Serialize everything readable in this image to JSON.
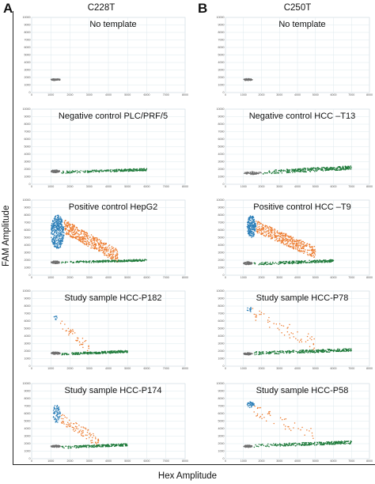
{
  "figure": {
    "label_a": "A",
    "label_b": "B",
    "column_a_title": "C228T",
    "column_b_title": "C250T",
    "y_axis_label": "FAM Amplitude",
    "x_axis_label": "Hex Amplitude"
  },
  "colors": {
    "negative_droplets": "#6e6e6e",
    "hex_positive": "#1e7a3a",
    "fam_positive": "#2c7fb8",
    "double_positive": "#ed7d31",
    "grid": "#dde8ee"
  },
  "chart_data": [
    {
      "type": "scatter",
      "panel": "A1",
      "title": "No template",
      "xlim": [
        0,
        8000
      ],
      "ylim": [
        0,
        10000
      ],
      "x_ticks": [
        0,
        1000,
        2000,
        3000,
        4000,
        5000,
        6000,
        7000,
        8000
      ],
      "y_ticks": [
        0,
        1000,
        2000,
        3000,
        4000,
        5000,
        6000,
        7000,
        8000,
        9000,
        10000
      ],
      "series": [
        {
          "role": "negative",
          "x": [
            1000,
            1500
          ],
          "y": [
            1600,
            1850
          ],
          "density": 70
        }
      ]
    },
    {
      "type": "scatter",
      "panel": "B1",
      "title": "No template",
      "xlim": [
        0,
        8000
      ],
      "ylim": [
        0,
        10000
      ],
      "x_ticks": [
        0,
        1000,
        2000,
        3000,
        4000,
        5000,
        6000,
        7000,
        8000
      ],
      "y_ticks": [
        0,
        1000,
        2000,
        3000,
        4000,
        5000,
        6000,
        7000,
        8000,
        9000,
        10000
      ],
      "series": [
        {
          "role": "negative",
          "x": [
            1000,
            1500
          ],
          "y": [
            1600,
            1850
          ],
          "density": 70
        }
      ]
    },
    {
      "type": "scatter",
      "panel": "A2",
      "title": "Negative control  PLC/PRF/5",
      "xlim": [
        0,
        8000
      ],
      "ylim": [
        0,
        10000
      ],
      "x_ticks": [
        0,
        1000,
        2000,
        3000,
        4000,
        5000,
        6000,
        7000,
        8000
      ],
      "y_ticks": [
        0,
        1000,
        2000,
        3000,
        4000,
        5000,
        6000,
        7000,
        8000,
        9000,
        10000
      ],
      "series": [
        {
          "role": "negative",
          "x": [
            1000,
            1500
          ],
          "y": [
            1550,
            1900
          ],
          "density": 70
        },
        {
          "role": "hex_positive",
          "x": [
            1500,
            6000
          ],
          "y": [
            1600,
            2200
          ],
          "density": 260
        }
      ]
    },
    {
      "type": "scatter",
      "panel": "B2",
      "title": "Negative control  HCC –T13",
      "xlim": [
        0,
        8000
      ],
      "ylim": [
        0,
        10000
      ],
      "x_ticks": [
        0,
        1000,
        2000,
        3000,
        4000,
        5000,
        6000,
        7000,
        8000
      ],
      "y_ticks": [
        0,
        1000,
        2000,
        3000,
        4000,
        5000,
        6000,
        7000,
        8000,
        9000,
        10000
      ],
      "series": [
        {
          "role": "negative",
          "x": [
            1000,
            2000
          ],
          "y": [
            1300,
            1700
          ],
          "density": 70
        },
        {
          "role": "hex_positive",
          "x": [
            2000,
            7000
          ],
          "y": [
            1600,
            2600
          ],
          "density": 320
        }
      ]
    },
    {
      "type": "scatter",
      "panel": "A3",
      "title": "Positive control  HepG2",
      "xlim": [
        0,
        8000
      ],
      "ylim": [
        0,
        10000
      ],
      "x_ticks": [
        0,
        1000,
        2000,
        3000,
        4000,
        5000,
        6000,
        7000,
        8000
      ],
      "y_ticks": [
        0,
        1000,
        2000,
        3000,
        4000,
        5000,
        6000,
        7000,
        8000,
        9000,
        10000
      ],
      "series": [
        {
          "role": "negative",
          "x": [
            1000,
            1500
          ],
          "y": [
            1550,
            1900
          ],
          "density": 70
        },
        {
          "role": "fam_positive",
          "x": [
            1000,
            1700
          ],
          "y": [
            3500,
            8000
          ],
          "density": 380
        },
        {
          "role": "double_positive",
          "x": [
            1700,
            4500
          ],
          "y": [
            2500,
            6500
          ],
          "density": 460
        },
        {
          "role": "hex_positive",
          "x": [
            1500,
            6000
          ],
          "y": [
            1700,
            2200
          ],
          "density": 240
        }
      ]
    },
    {
      "type": "scatter",
      "panel": "B3",
      "title": "Positive control  HCC –T9",
      "xlim": [
        0,
        8000
      ],
      "ylim": [
        0,
        10000
      ],
      "x_ticks": [
        0,
        1000,
        2000,
        3000,
        4000,
        5000,
        6000,
        7000,
        8000
      ],
      "y_ticks": [
        0,
        1000,
        2000,
        3000,
        4000,
        5000,
        6000,
        7000,
        8000,
        9000,
        10000
      ],
      "series": [
        {
          "role": "negative",
          "x": [
            1000,
            1500
          ],
          "y": [
            1400,
            1800
          ],
          "density": 70
        },
        {
          "role": "fam_positive",
          "x": [
            1200,
            1700
          ],
          "y": [
            5000,
            8000
          ],
          "density": 220
        },
        {
          "role": "double_positive",
          "x": [
            1700,
            5000
          ],
          "y": [
            3000,
            6500
          ],
          "density": 440
        },
        {
          "role": "hex_positive",
          "x": [
            1500,
            6000
          ],
          "y": [
            1500,
            2200
          ],
          "density": 240
        }
      ]
    },
    {
      "type": "scatter",
      "panel": "A4",
      "title": "Study sample  HCC-P182",
      "xlim": [
        0,
        8000
      ],
      "ylim": [
        0,
        10000
      ],
      "x_ticks": [
        0,
        1000,
        2000,
        3000,
        4000,
        5000,
        6000,
        7000,
        8000
      ],
      "y_ticks": [
        0,
        1000,
        2000,
        3000,
        4000,
        5000,
        6000,
        7000,
        8000,
        9000,
        10000
      ],
      "series": [
        {
          "role": "negative",
          "x": [
            1000,
            1500
          ],
          "y": [
            1550,
            1900
          ],
          "density": 70
        },
        {
          "role": "fam_positive",
          "x": [
            1100,
            1400
          ],
          "y": [
            6200,
            6800
          ],
          "density": 10
        },
        {
          "role": "double_positive",
          "x": [
            1500,
            3000
          ],
          "y": [
            2500,
            5500
          ],
          "density": 40
        },
        {
          "role": "hex_positive",
          "x": [
            1500,
            5000
          ],
          "y": [
            1600,
            2200
          ],
          "density": 260
        }
      ]
    },
    {
      "type": "scatter",
      "panel": "B4",
      "title": "Study sample  HCC-P78",
      "xlim": [
        0,
        8000
      ],
      "ylim": [
        0,
        10000
      ],
      "x_ticks": [
        0,
        1000,
        2000,
        3000,
        4000,
        5000,
        6000,
        7000,
        8000
      ],
      "y_ticks": [
        0,
        1000,
        2000,
        3000,
        4000,
        5000,
        6000,
        7000,
        8000,
        9000,
        10000
      ],
      "series": [
        {
          "role": "negative",
          "x": [
            1000,
            1500
          ],
          "y": [
            1500,
            1800
          ],
          "density": 70
        },
        {
          "role": "fam_positive",
          "x": [
            1200,
            1500
          ],
          "y": [
            7200,
            7900
          ],
          "density": 12
        },
        {
          "role": "double_positive",
          "x": [
            1500,
            5000
          ],
          "y": [
            3000,
            7000
          ],
          "density": 55
        },
        {
          "role": "hex_positive",
          "x": [
            1500,
            7000
          ],
          "y": [
            1700,
            2500
          ],
          "density": 320
        }
      ]
    },
    {
      "type": "scatter",
      "panel": "A5",
      "title": "Study sample  HCC-P174",
      "xlim": [
        0,
        8000
      ],
      "ylim": [
        0,
        10000
      ],
      "x_ticks": [
        0,
        1000,
        2000,
        3000,
        4000,
        5000,
        6000,
        7000,
        8000
      ],
      "y_ticks": [
        0,
        1000,
        2000,
        3000,
        4000,
        5000,
        6000,
        7000,
        8000,
        9000,
        10000
      ],
      "series": [
        {
          "role": "negative",
          "x": [
            1000,
            1500
          ],
          "y": [
            1500,
            1800
          ],
          "density": 70
        },
        {
          "role": "fam_positive",
          "x": [
            1100,
            1500
          ],
          "y": [
            4800,
            7200
          ],
          "density": 70
        },
        {
          "role": "double_positive",
          "x": [
            1500,
            3500
          ],
          "y": [
            2200,
            5500
          ],
          "density": 90
        },
        {
          "role": "hex_positive",
          "x": [
            1500,
            5000
          ],
          "y": [
            1500,
            2100
          ],
          "density": 220
        }
      ]
    },
    {
      "type": "scatter",
      "panel": "B5",
      "title": "Study sample  HCC-P58",
      "xlim": [
        0,
        8000
      ],
      "ylim": [
        0,
        10000
      ],
      "x_ticks": [
        0,
        1000,
        2000,
        3000,
        4000,
        5000,
        6000,
        7000,
        8000
      ],
      "y_ticks": [
        0,
        1000,
        2000,
        3000,
        4000,
        5000,
        6000,
        7000,
        8000,
        9000,
        10000
      ],
      "series": [
        {
          "role": "negative",
          "x": [
            1000,
            1500
          ],
          "y": [
            1500,
            1800
          ],
          "density": 70
        },
        {
          "role": "fam_positive",
          "x": [
            1200,
            1600
          ],
          "y": [
            6800,
            7600
          ],
          "density": 40
        },
        {
          "role": "double_positive",
          "x": [
            1500,
            5000
          ],
          "y": [
            3000,
            6500
          ],
          "density": 45
        },
        {
          "role": "hex_positive",
          "x": [
            1500,
            7000
          ],
          "y": [
            1700,
            2500
          ],
          "density": 280
        }
      ]
    }
  ]
}
